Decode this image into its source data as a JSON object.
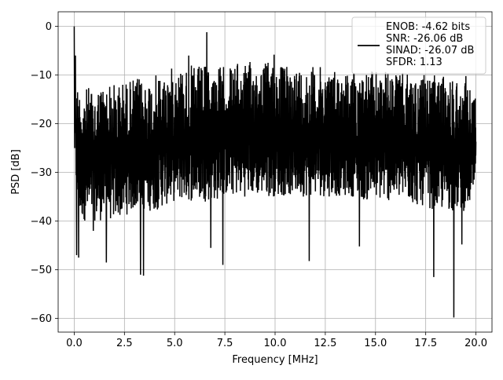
{
  "chart_data": {
    "type": "line",
    "title": "",
    "xlabel": "Frequency [MHz]",
    "ylabel": "PSD [dB]",
    "xlim": [
      -0.8,
      20.8
    ],
    "ylim": [
      -62.8,
      3.0
    ],
    "x_ticks": [
      0.0,
      2.5,
      5.0,
      7.5,
      10.0,
      12.5,
      15.0,
      17.5,
      20.0
    ],
    "x_tick_labels": [
      "0.0",
      "2.5",
      "5.0",
      "7.5",
      "10.0",
      "12.5",
      "15.0",
      "17.5",
      "20.0"
    ],
    "y_ticks": [
      0,
      -10,
      -20,
      -30,
      -40,
      -50,
      -60
    ],
    "y_tick_labels": [
      "0",
      "−10",
      "−20",
      "−30",
      "−40",
      "−50",
      "−60"
    ],
    "grid": true,
    "legend_position": "top-right",
    "legend_lines": [
      "ENOB: -4.62 bits",
      "SNR: -26.06 dB",
      "SINAD: -26.07 dB",
      "SFDR: 1.13"
    ],
    "series": [
      {
        "color": "#000000",
        "envelope": {
          "x": [
            0.0,
            0.1,
            0.3,
            0.6,
            1.0,
            1.5,
            2.0,
            2.5,
            3.0,
            3.5,
            4.0,
            4.5,
            5.0,
            5.5,
            6.0,
            6.5,
            7.0,
            7.5,
            8.0,
            8.5,
            9.0,
            9.5,
            10.0,
            10.5,
            11.0,
            11.5,
            12.0,
            12.5,
            13.0,
            13.5,
            14.0,
            14.5,
            15.0,
            15.5,
            16.0,
            16.5,
            17.0,
            17.5,
            18.0,
            18.5,
            19.0,
            19.5,
            20.0
          ],
          "upper": [
            0.0,
            -11,
            -12.5,
            -12.5,
            -12,
            -11.5,
            -11.5,
            -11,
            -10.5,
            -10.5,
            -10,
            -9.5,
            -8,
            -8,
            -8,
            -8,
            -8,
            -8,
            -7.5,
            -7.5,
            -7,
            -7,
            -7,
            -8,
            -8,
            -8,
            -8,
            -8.5,
            -8.5,
            -9,
            -9,
            -9,
            -9,
            -9,
            -9.5,
            -9.5,
            -10,
            -10,
            -10,
            -10,
            -10,
            -10,
            -14
          ],
          "lower": [
            -10,
            -37,
            -40,
            -40,
            -40,
            -40,
            -40,
            -39,
            -38,
            -38,
            -38,
            -37,
            -36,
            -36,
            -36,
            -36,
            -36,
            -35,
            -35,
            -35,
            -35,
            -35,
            -35,
            -35,
            -35,
            -35,
            -35,
            -35,
            -35,
            -35,
            -35,
            -36,
            -36,
            -36,
            -36,
            -36,
            -37,
            -37,
            -38,
            -38,
            -38,
            -38,
            -35
          ]
        },
        "spikes": [
          {
            "x": 0.02,
            "y": -25
          },
          {
            "x": 0.06,
            "y": -6
          },
          {
            "x": 0.12,
            "y": -47
          },
          {
            "x": 0.22,
            "y": -47.5
          },
          {
            "x": 0.95,
            "y": -42
          },
          {
            "x": 1.6,
            "y": -48.5
          },
          {
            "x": 3.3,
            "y": -51
          },
          {
            "x": 3.45,
            "y": -51.2
          },
          {
            "x": 5.7,
            "y": -6
          },
          {
            "x": 6.6,
            "y": -1.2
          },
          {
            "x": 6.8,
            "y": -45.5
          },
          {
            "x": 7.4,
            "y": -49
          },
          {
            "x": 9.95,
            "y": -5.8
          },
          {
            "x": 11.7,
            "y": -48.2
          },
          {
            "x": 14.2,
            "y": -45.2
          },
          {
            "x": 17.9,
            "y": -51.5
          },
          {
            "x": 18.9,
            "y": -59.8
          },
          {
            "x": 19.3,
            "y": -44.8
          }
        ]
      }
    ]
  }
}
